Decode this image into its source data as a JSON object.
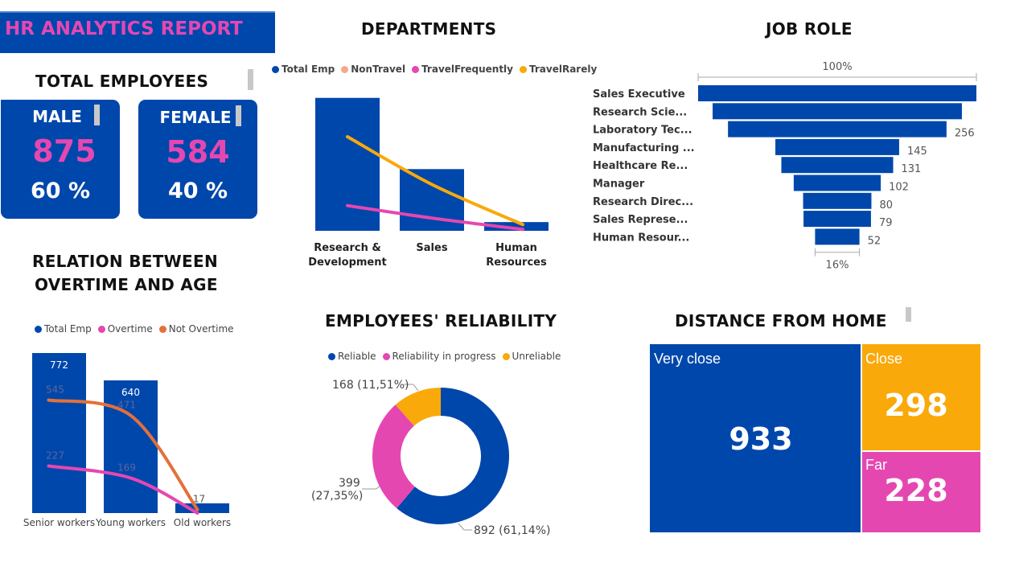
{
  "report_title": "HR ANALYTICS REPORT",
  "colors": {
    "blue": "#0047ab",
    "pink": "#e547b1",
    "orange": "#f9a90a",
    "salmon": "#f4a98a",
    "red_orange": "#e3703a"
  },
  "total_employees": {
    "title": "TOTAL EMPLOYEES",
    "male": {
      "label": "MALE",
      "count": "875",
      "pct": "60 %"
    },
    "female": {
      "label": "FEMALE",
      "count": "584",
      "pct": "40 %"
    }
  },
  "departments": {
    "title": "DEPARTMENTS",
    "legend": [
      {
        "label": "Total Emp",
        "color": "#0047ab"
      },
      {
        "label": "NonTravel",
        "color": "#f4a98a"
      },
      {
        "label": "TravelFrequently",
        "color": "#e547b1"
      },
      {
        "label": "TravelRarely",
        "color": "#f9a90a"
      }
    ]
  },
  "job_role": {
    "title": "JOB ROLE",
    "top_label": "100%",
    "bottom_label": "16%"
  },
  "overtime": {
    "title_line1": "RELATION BETWEEN",
    "title_line2": "OVERTIME AND AGE",
    "legend": [
      {
        "label": "Total Emp",
        "color": "#0047ab"
      },
      {
        "label": "Overtime",
        "color": "#e547b1"
      },
      {
        "label": "Not Overtime",
        "color": "#e3703a"
      }
    ]
  },
  "reliability": {
    "title": "EMPLOYEES' RELIABILITY",
    "legend": [
      {
        "label": "Reliable",
        "color": "#0047ab"
      },
      {
        "label": "Reliability in progress",
        "color": "#e547b1"
      },
      {
        "label": "Unreliable",
        "color": "#f9a90a"
      }
    ],
    "labels": {
      "unreliable": "168 (11,51%)",
      "progress_line1": "399",
      "progress_line2": "(27,35%)",
      "reliable": "892 (61,14%)"
    }
  },
  "distance": {
    "title": "DISTANCE FROM HOME",
    "tiles": [
      {
        "label": "Very close",
        "value": "933",
        "color": "#0047ab"
      },
      {
        "label": "Close",
        "value": "298",
        "color": "#f9a90a"
      },
      {
        "label": "Far",
        "value": "228",
        "color": "#e547b1"
      }
    ]
  },
  "chart_data": [
    {
      "type": "bar",
      "title": "DEPARTMENTS",
      "categories": [
        "Research & Development",
        "Sales",
        "Human Resources"
      ],
      "category_lines": [
        [
          "Research &",
          "Development"
        ],
        [
          "Sales"
        ],
        [
          "Human",
          "Resources"
        ]
      ],
      "series": [
        {
          "name": "Total Emp",
          "kind": "bar",
          "values": [
            961,
            446,
            63
          ],
          "color": "#0047ab"
        },
        {
          "name": "TravelRarely",
          "kind": "line",
          "values": [
            680,
            335,
            45
          ],
          "color": "#f9a90a"
        },
        {
          "name": "TravelFrequently",
          "kind": "line",
          "values": [
            182,
            92,
            10
          ],
          "color": "#e547b1"
        }
      ],
      "ylim": [
        0,
        1000
      ]
    },
    {
      "type": "bar",
      "title": "JOB ROLE",
      "orientation": "horizontal-funnel",
      "categories": [
        "Sales Executive",
        "Research Scie...",
        "Laboratory Tec...",
        "Manufacturing ...",
        "Healthcare Re...",
        "Manager",
        "Research Direc...",
        "Sales Represe...",
        "Human Resour..."
      ],
      "values": [
        326,
        292,
        256,
        145,
        131,
        102,
        80,
        79,
        52
      ],
      "value_labels": [
        "",
        "",
        "256",
        "145",
        "131",
        "102",
        "80",
        "79",
        "52"
      ],
      "color": "#0047ab"
    },
    {
      "type": "bar",
      "title": "RELATION BETWEEN OVERTIME AND AGE",
      "categories": [
        "Senior workers",
        "Young workers",
        "Old workers"
      ],
      "series": [
        {
          "name": "Total Emp",
          "kind": "bar",
          "values": [
            772,
            640,
            47
          ],
          "labels": [
            "772",
            "640",
            ""
          ],
          "color": "#0047ab"
        },
        {
          "name": "Not Overtime",
          "kind": "line",
          "values": [
            545,
            471,
            17
          ],
          "labels": [
            "545",
            "471",
            "17"
          ],
          "color": "#e3703a"
        },
        {
          "name": "Overtime",
          "kind": "line",
          "values": [
            227,
            169,
            0
          ],
          "labels": [
            "227",
            "169",
            ""
          ],
          "color": "#e547b1"
        }
      ],
      "ylim": [
        0,
        772
      ]
    },
    {
      "type": "pie",
      "title": "EMPLOYEES' RELIABILITY",
      "donut": true,
      "slices": [
        {
          "name": "Reliable",
          "value": 892,
          "label": "892 (61,14%)",
          "color": "#0047ab"
        },
        {
          "name": "Reliability in progress",
          "value": 399,
          "label": "399 (27,35%)",
          "color": "#e547b1"
        },
        {
          "name": "Unreliable",
          "value": 168,
          "label": "168 (11,51%)",
          "color": "#f9a90a"
        }
      ]
    },
    {
      "type": "treemap",
      "title": "DISTANCE FROM HOME",
      "categories": [
        "Very close",
        "Close",
        "Far"
      ],
      "values": [
        933,
        298,
        228
      ]
    }
  ]
}
